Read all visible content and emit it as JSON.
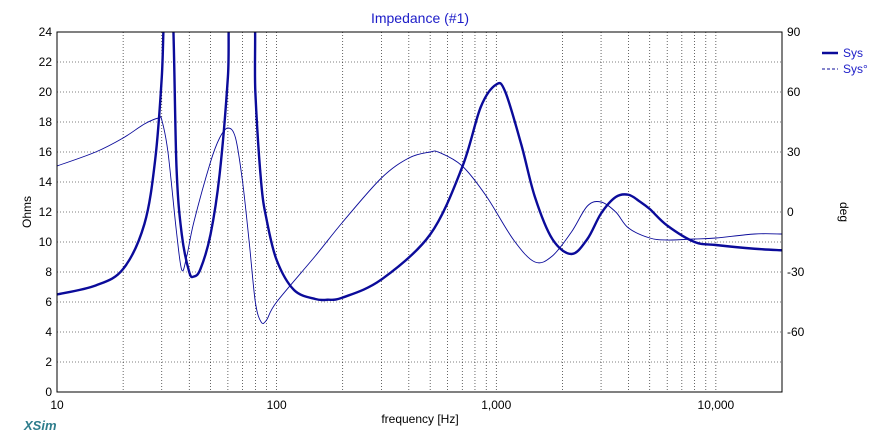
{
  "app": {
    "brand": "XSim"
  },
  "colors": {
    "series": "#0b0b9a",
    "title": "#1c1cc8",
    "brand": "#2e7d8c",
    "grid": "#000000"
  },
  "chart_data": {
    "type": "line",
    "title": "Impedance (#1)",
    "xlabel": "frequency [Hz]",
    "ylabel": "Ohms",
    "y2label": "deg",
    "xscale": "log",
    "xlim": [
      10,
      20000
    ],
    "ylim": [
      0,
      24
    ],
    "y2lim": [
      -90,
      90
    ],
    "grid": true,
    "legend_position": "top-right",
    "x_ticks": [
      {
        "value": 10,
        "label": "10"
      },
      {
        "value": 100,
        "label": "100"
      },
      {
        "value": 1000,
        "label": "1,000"
      },
      {
        "value": 10000,
        "label": "10,000"
      }
    ],
    "y_ticks": [
      0,
      2,
      4,
      6,
      8,
      10,
      12,
      14,
      16,
      18,
      20,
      22,
      24
    ],
    "y2_ticks": [
      -60,
      -30,
      0,
      30,
      60,
      90
    ],
    "series": [
      {
        "name": "Sys",
        "axis": "left",
        "style": "solid-thick",
        "points": [
          [
            10,
            6.5
          ],
          [
            15,
            7.1
          ],
          [
            20,
            8.2
          ],
          [
            25,
            11.2
          ],
          [
            28,
            15.5
          ],
          [
            30,
            21
          ],
          [
            31,
            26
          ],
          [
            33.5,
            26
          ],
          [
            35,
            15
          ],
          [
            37,
            10.5
          ],
          [
            40,
            8.0
          ],
          [
            42,
            7.7
          ],
          [
            45,
            8.2
          ],
          [
            50,
            10.5
          ],
          [
            55,
            14.5
          ],
          [
            60,
            21
          ],
          [
            62,
            26
          ],
          [
            78,
            26
          ],
          [
            80,
            20
          ],
          [
            85,
            14
          ],
          [
            90,
            11.5
          ],
          [
            100,
            8.8
          ],
          [
            120,
            6.8
          ],
          [
            150,
            6.2
          ],
          [
            170,
            6.15
          ],
          [
            200,
            6.3
          ],
          [
            300,
            7.5
          ],
          [
            500,
            10.5
          ],
          [
            700,
            15
          ],
          [
            850,
            19
          ],
          [
            1000,
            20.5
          ],
          [
            1100,
            20.0
          ],
          [
            1300,
            16.5
          ],
          [
            1500,
            13
          ],
          [
            1800,
            10.2
          ],
          [
            2200,
            9.2
          ],
          [
            2600,
            10.2
          ],
          [
            3000,
            11.9
          ],
          [
            3500,
            13
          ],
          [
            4000,
            13.15
          ],
          [
            4500,
            12.7
          ],
          [
            5000,
            12.2
          ],
          [
            6000,
            11.1
          ],
          [
            8000,
            10.0
          ],
          [
            10000,
            9.8
          ],
          [
            15000,
            9.55
          ],
          [
            20000,
            9.45
          ]
        ]
      },
      {
        "name": "Sys°",
        "axis": "right",
        "style": "thin",
        "points": [
          [
            10,
            23
          ],
          [
            15,
            30
          ],
          [
            20,
            37
          ],
          [
            25,
            44
          ],
          [
            29,
            47
          ],
          [
            30,
            46
          ],
          [
            32,
            30
          ],
          [
            35,
            -10
          ],
          [
            37,
            -29
          ],
          [
            39,
            -22
          ],
          [
            42,
            -5
          ],
          [
            50,
            25
          ],
          [
            55,
            37
          ],
          [
            60,
            42
          ],
          [
            65,
            37
          ],
          [
            70,
            15
          ],
          [
            75,
            -15
          ],
          [
            80,
            -45
          ],
          [
            85,
            -55
          ],
          [
            90,
            -54
          ],
          [
            100,
            -45
          ],
          [
            150,
            -22
          ],
          [
            200,
            -5
          ],
          [
            300,
            17
          ],
          [
            400,
            27
          ],
          [
            500,
            30
          ],
          [
            550,
            29.8
          ],
          [
            700,
            23
          ],
          [
            900,
            8
          ],
          [
            1200,
            -14
          ],
          [
            1500,
            -25
          ],
          [
            1800,
            -22
          ],
          [
            2200,
            -10
          ],
          [
            2600,
            3
          ],
          [
            3000,
            5
          ],
          [
            3500,
            0
          ],
          [
            4000,
            -8
          ],
          [
            5000,
            -13
          ],
          [
            6000,
            -14
          ],
          [
            8000,
            -13.5
          ],
          [
            10000,
            -13
          ],
          [
            15000,
            -11
          ],
          [
            20000,
            -11
          ]
        ]
      }
    ]
  }
}
